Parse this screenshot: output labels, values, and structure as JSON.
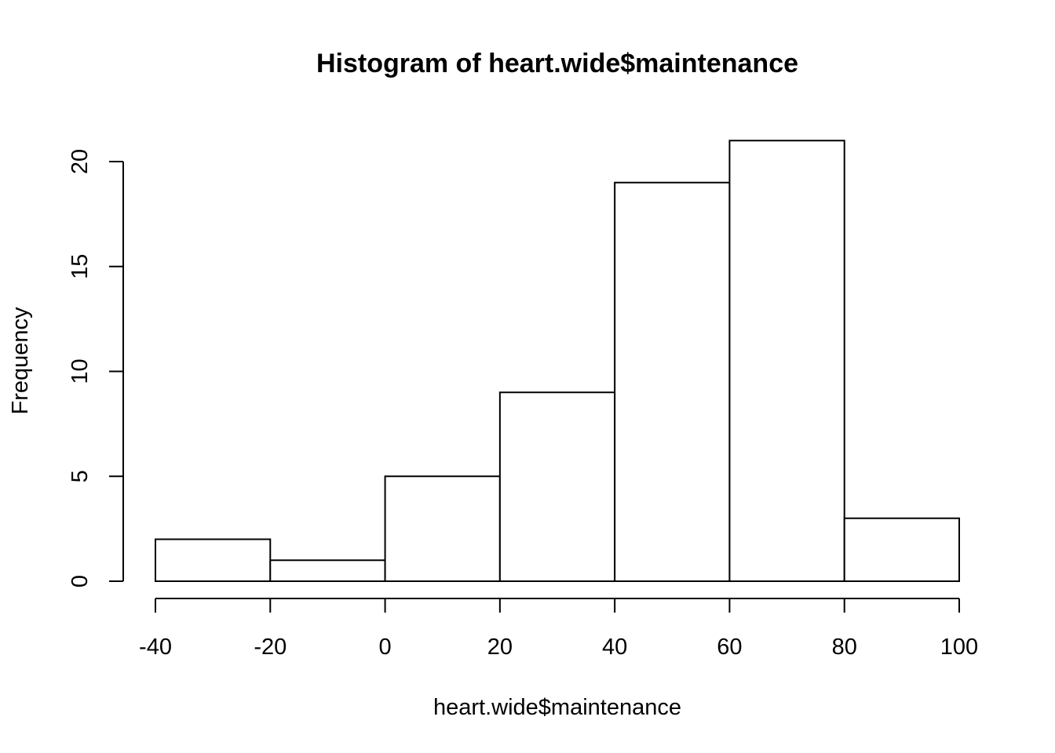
{
  "chart_data": {
    "type": "bar",
    "title": "Histogram of heart.wide$maintenance",
    "xlabel": "heart.wide$maintenance",
    "ylabel": "Frequency",
    "bins": [
      {
        "from": -40,
        "to": -20,
        "count": 2
      },
      {
        "from": -20,
        "to": 0,
        "count": 1
      },
      {
        "from": 0,
        "to": 20,
        "count": 5
      },
      {
        "from": 20,
        "to": 40,
        "count": 9
      },
      {
        "from": 40,
        "to": 60,
        "count": 19
      },
      {
        "from": 60,
        "to": 80,
        "count": 21
      },
      {
        "from": 80,
        "to": 100,
        "count": 3
      }
    ],
    "xlim": [
      -40,
      100
    ],
    "ylim": [
      0,
      21
    ],
    "x_ticks": [
      "-40",
      "-20",
      "0",
      "20",
      "40",
      "60",
      "80",
      "100"
    ],
    "y_ticks": [
      "0",
      "5",
      "10",
      "15",
      "20"
    ],
    "grid": false,
    "bar_fill": "#ffffff",
    "bar_stroke": "#000000"
  }
}
